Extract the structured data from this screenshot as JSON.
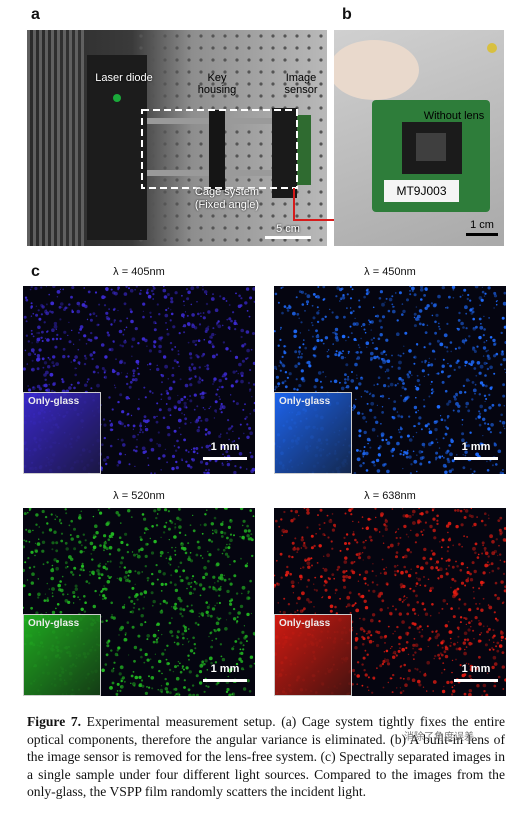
{
  "panels": {
    "a": {
      "label": "a",
      "labels": {
        "laser_diode": "Laser diode",
        "key_housing": "Key housing",
        "image_sensor": "Image sensor",
        "cage_system": "Cage system",
        "fixed_angle": "(Fixed angle)",
        "scale": "5 cm"
      }
    },
    "b": {
      "label": "b",
      "labels": {
        "without_lens": "Without lens",
        "sensor_model": "MT9J003",
        "scale": "1 cm"
      }
    },
    "c": {
      "label": "c",
      "images": [
        {
          "lambda": "λ = 405nm",
          "inset": "Only-glass",
          "scale": "1 mm",
          "color": "#3d2bd6"
        },
        {
          "lambda": "λ = 450nm",
          "inset": "Only-glass",
          "scale": "1 mm",
          "color": "#1f6cff"
        },
        {
          "lambda": "λ = 520nm",
          "inset": "Only-glass",
          "scale": "1 mm",
          "color": "#22b822"
        },
        {
          "lambda": "λ = 638nm",
          "inset": "Only-glass",
          "scale": "1 mm",
          "color": "#e21c12"
        }
      ]
    }
  },
  "caption": {
    "figure_label": "Figure 7.",
    "text": "Experimental measurement setup. (a) Cage system tightly fixes the entire optical components, therefore the angular variance is eliminated. (b) A built-in lens of the image sensor is removed for the lens-free system. (c) Spectrally separated images in a single sample under four different light sources. Compared to the images from the only-glass, the VSPP film randomly scatters the incident light."
  },
  "watermark": "消除了角度误差"
}
